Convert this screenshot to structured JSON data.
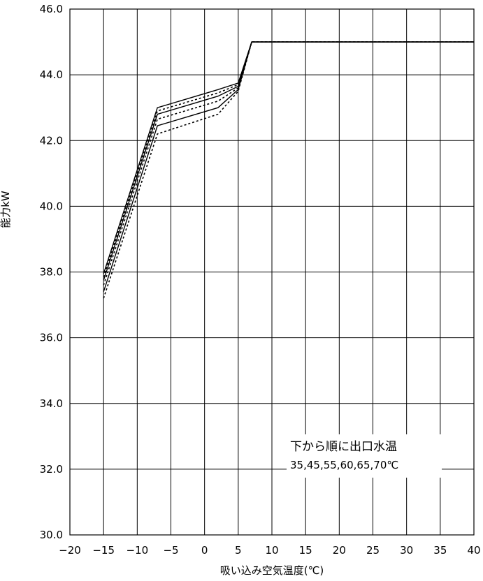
{
  "chart_data": {
    "type": "line",
    "title": "",
    "xlabel": "吸い込み空気温度(℃)",
    "ylabel": "能力kW",
    "xlim": [
      -20,
      40
    ],
    "ylim": [
      30,
      46
    ],
    "x_ticks": [
      "−20",
      "−15",
      "−10",
      "−5",
      "0",
      "5",
      "10",
      "15",
      "20",
      "25",
      "30",
      "35",
      "40"
    ],
    "y_ticks": [
      "30.0",
      "32.0",
      "34.0",
      "36.0",
      "38.0",
      "40.0",
      "42.0",
      "44.0",
      "46.0"
    ],
    "grid": true,
    "annotation_lines": [
      "下から順に出口水温",
      "35,45,55,60,65,70℃"
    ],
    "series": [
      {
        "style": "dashed",
        "x": [
          -15,
          -7,
          2,
          5,
          7,
          40
        ],
        "y": [
          37.2,
          42.2,
          42.8,
          43.5,
          45,
          45
        ]
      },
      {
        "style": "solid",
        "x": [
          -15,
          -7,
          2,
          5,
          7,
          40
        ],
        "y": [
          37.4,
          42.45,
          43.0,
          43.55,
          45,
          45
        ]
      },
      {
        "style": "dashed",
        "x": [
          -15,
          -7,
          2,
          5,
          7,
          40
        ],
        "y": [
          37.6,
          42.65,
          43.2,
          43.6,
          45,
          45
        ]
      },
      {
        "style": "solid",
        "x": [
          -15,
          -7,
          2,
          5,
          7,
          40
        ],
        "y": [
          37.75,
          42.8,
          43.35,
          43.65,
          45,
          45
        ]
      },
      {
        "style": "dashed",
        "x": [
          -15,
          -7,
          2,
          5,
          7,
          40
        ],
        "y": [
          37.85,
          42.9,
          43.45,
          43.7,
          45,
          45
        ]
      },
      {
        "style": "solid",
        "x": [
          -15,
          -7,
          2,
          5,
          7,
          40
        ],
        "y": [
          37.95,
          43.0,
          43.55,
          43.75,
          45,
          45
        ]
      }
    ]
  }
}
